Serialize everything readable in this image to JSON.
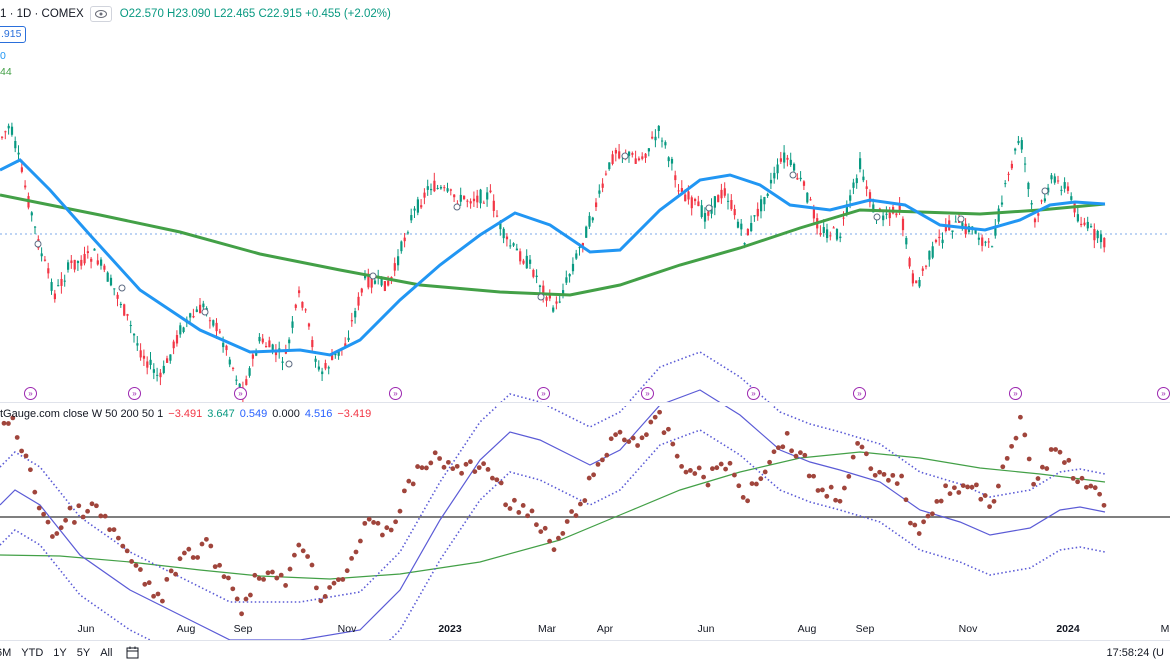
{
  "header": {
    "symbol": "1 · 1D · COMEX",
    "hide_icon": "eye-icon",
    "ohlc": "O22.570 H23.090 L22.465 C22.915 +0.455 (+2.02%)",
    "price_label": ".915",
    "ma50_label": "0",
    "ma200_label": "44"
  },
  "indicator": {
    "name": "tGauge.com close W 50 200 50 1",
    "values": [
      "−3.491",
      "3.647",
      "0.549",
      "0.000",
      "4.516",
      "−3.419"
    ]
  },
  "x_axis_labels": [
    "Jun",
    "Aug",
    "Sep",
    "Nov",
    "2023",
    "Mar",
    "Apr",
    "Jun",
    "Aug",
    "Sep",
    "Nov",
    "2024",
    "M"
  ],
  "bottom_bar": {
    "ranges": [
      "6M",
      "YTD",
      "1Y",
      "5Y",
      "All"
    ],
    "calendar_icon": "calendar-icon",
    "clock": "17:58:24 (U"
  },
  "colors": {
    "up": "#089981",
    "down": "#f23645",
    "ma50": "#2196f3",
    "ma200": "#43a047",
    "indicator_dots": "#a0453c",
    "indicator_bands": "#5b5bd6",
    "event_markers": "#9c27b0"
  },
  "chart_data": {
    "type": "line",
    "description_series": [
      {
        "name": "MA50",
        "values": [
          21.9,
          21.2,
          20.3,
          19.6,
          19.2,
          19.9,
          21.4,
          22.6,
          22.9,
          22.1,
          21.8,
          22.8,
          22.7,
          22.3,
          22.0,
          22.2,
          22.5
        ]
      },
      {
        "name": "MA200",
        "values": [
          22.6,
          22.2,
          21.8,
          21.4,
          21.1,
          20.9,
          20.6,
          20.5,
          20.8,
          21.5,
          22.2,
          22.6,
          22.5,
          22.5,
          22.4,
          22.6,
          22.6
        ]
      }
    ],
    "last_close": 22.915,
    "indicator_zero": 0.0
  }
}
